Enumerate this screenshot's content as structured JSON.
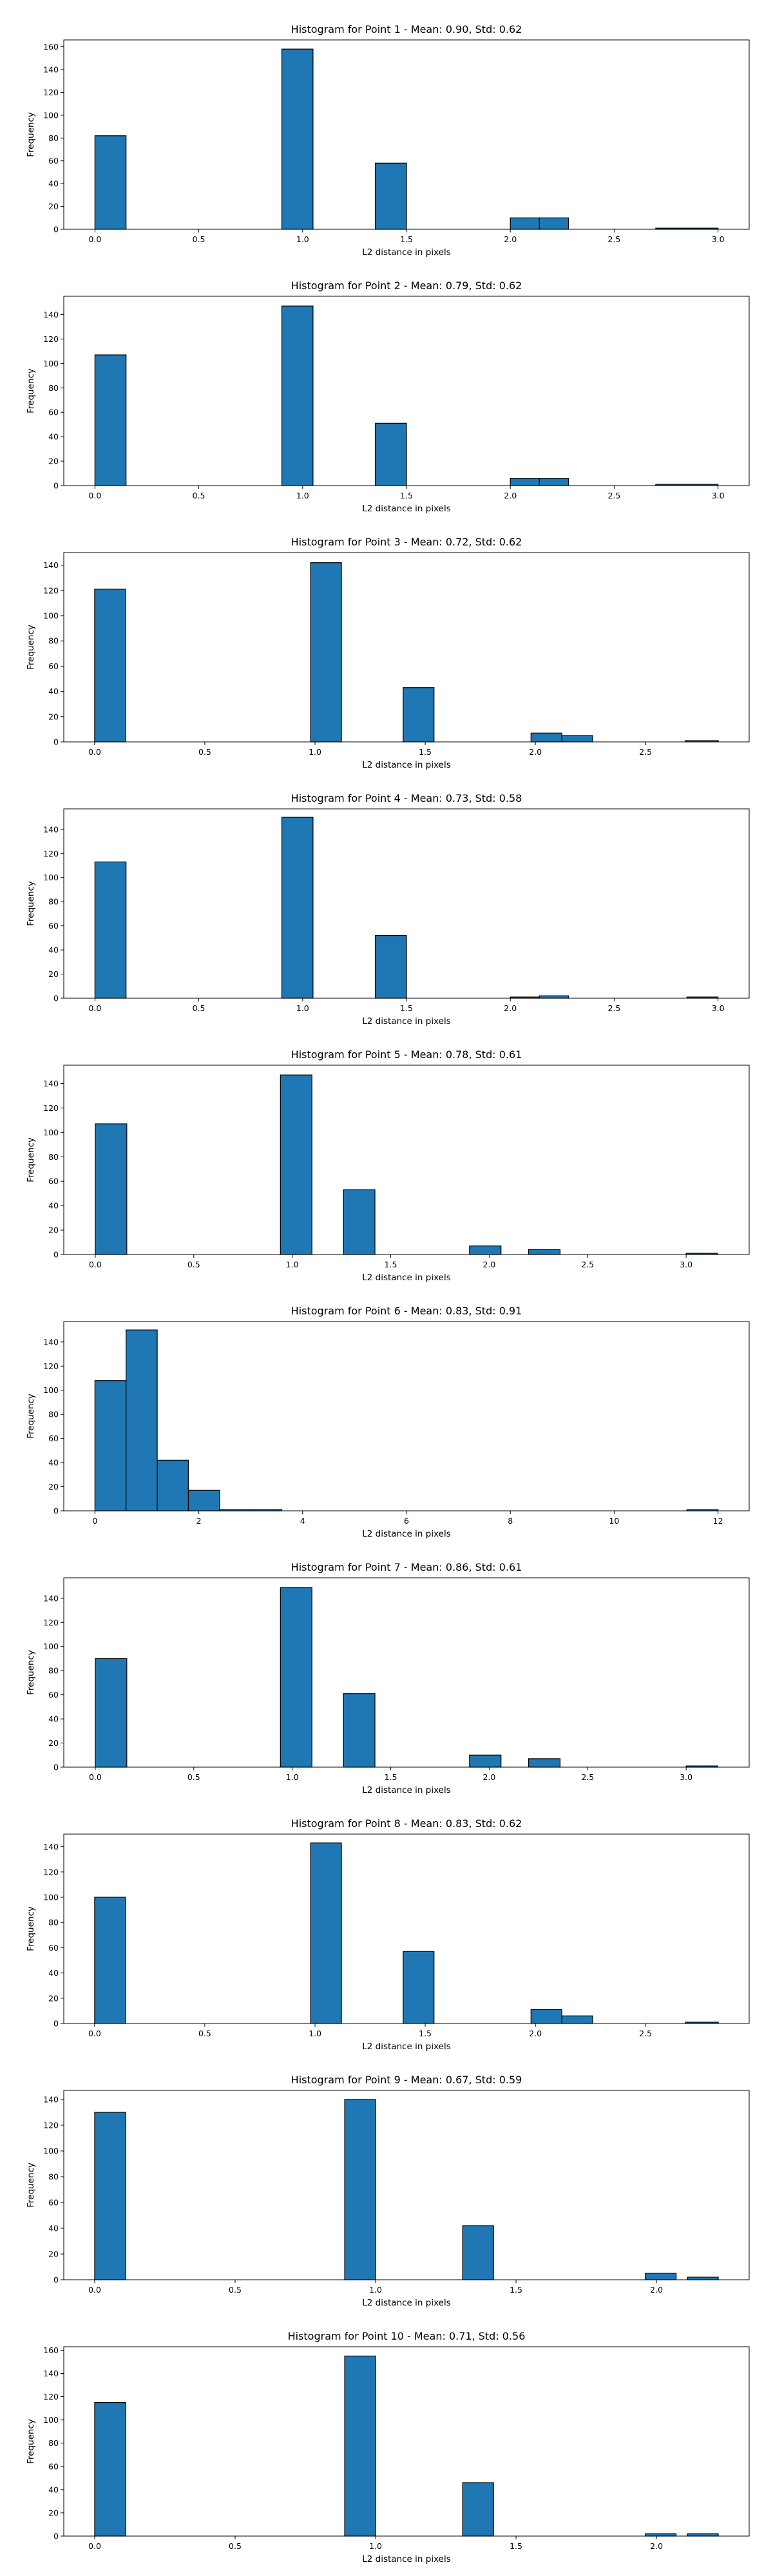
{
  "figure": {
    "background": "#ffffff"
  },
  "style": {
    "bar_color": "#1f77b4",
    "edge_color": "#000000"
  },
  "chart_data": [
    {
      "type": "bar",
      "title": "Histogram for Point 1 - Mean: 0.90, Std: 0.62",
      "xlabel": "L2 distance in pixels",
      "ylabel": "Frequency",
      "grid": false,
      "legend": "none",
      "xlim": [
        -0.15,
        3.15
      ],
      "ylim": [
        0,
        166
      ],
      "xticks": [
        "0.0",
        "0.5",
        "1.0",
        "1.5",
        "2.0",
        "2.5",
        "3.0"
      ],
      "yticks": [
        "0",
        "20",
        "40",
        "60",
        "80",
        "100",
        "120",
        "140",
        "160"
      ],
      "bins": [
        {
          "x0": 0.0,
          "x1": 0.15,
          "value": 82
        },
        {
          "x0": 0.9,
          "x1": 1.05,
          "value": 158
        },
        {
          "x0": 1.35,
          "x1": 1.5,
          "value": 58
        },
        {
          "x0": 2.0,
          "x1": 2.14,
          "value": 10
        },
        {
          "x0": 2.14,
          "x1": 2.28,
          "value": 10
        },
        {
          "x0": 2.7,
          "x1": 3.0,
          "value": 1
        }
      ]
    },
    {
      "type": "bar",
      "title": "Histogram for Point 2 - Mean: 0.79, Std: 0.62",
      "xlabel": "L2 distance in pixels",
      "ylabel": "Frequency",
      "grid": false,
      "legend": "none",
      "xlim": [
        -0.15,
        3.15
      ],
      "ylim": [
        0,
        155
      ],
      "xticks": [
        "0.0",
        "0.5",
        "1.0",
        "1.5",
        "2.0",
        "2.5",
        "3.0"
      ],
      "yticks": [
        "0",
        "20",
        "40",
        "60",
        "80",
        "100",
        "120",
        "140"
      ],
      "bins": [
        {
          "x0": 0.0,
          "x1": 0.15,
          "value": 107
        },
        {
          "x0": 0.9,
          "x1": 1.05,
          "value": 147
        },
        {
          "x0": 1.35,
          "x1": 1.5,
          "value": 51
        },
        {
          "x0": 2.0,
          "x1": 2.14,
          "value": 6
        },
        {
          "x0": 2.14,
          "x1": 2.28,
          "value": 6
        },
        {
          "x0": 2.7,
          "x1": 3.0,
          "value": 1
        }
      ]
    },
    {
      "type": "bar",
      "title": "Histogram for Point 3 - Mean: 0.72, Std: 0.62",
      "xlabel": "L2 distance in pixels",
      "ylabel": "Frequency",
      "grid": false,
      "legend": "none",
      "xlim": [
        -0.14,
        2.97
      ],
      "ylim": [
        0,
        150
      ],
      "xticks": [
        "0.0",
        "0.5",
        "1.0",
        "1.5",
        "2.0",
        "2.5"
      ],
      "yticks": [
        "0",
        "20",
        "40",
        "60",
        "80",
        "100",
        "120",
        "140"
      ],
      "bins": [
        {
          "x0": 0.0,
          "x1": 0.14,
          "value": 121
        },
        {
          "x0": 0.98,
          "x1": 1.12,
          "value": 142
        },
        {
          "x0": 1.4,
          "x1": 1.54,
          "value": 43
        },
        {
          "x0": 1.98,
          "x1": 2.12,
          "value": 7
        },
        {
          "x0": 2.12,
          "x1": 2.26,
          "value": 5
        },
        {
          "x0": 2.68,
          "x1": 2.83,
          "value": 1
        }
      ]
    },
    {
      "type": "bar",
      "title": "Histogram for Point 4 - Mean: 0.73, Std: 0.58",
      "xlabel": "L2 distance in pixels",
      "ylabel": "Frequency",
      "grid": false,
      "legend": "none",
      "xlim": [
        -0.15,
        3.15
      ],
      "ylim": [
        0,
        157
      ],
      "xticks": [
        "0.0",
        "0.5",
        "1.0",
        "1.5",
        "2.0",
        "2.5",
        "3.0"
      ],
      "yticks": [
        "0",
        "20",
        "40",
        "60",
        "80",
        "100",
        "120",
        "140"
      ],
      "bins": [
        {
          "x0": 0.0,
          "x1": 0.15,
          "value": 113
        },
        {
          "x0": 0.9,
          "x1": 1.05,
          "value": 150
        },
        {
          "x0": 1.35,
          "x1": 1.5,
          "value": 52
        },
        {
          "x0": 2.0,
          "x1": 2.14,
          "value": 1
        },
        {
          "x0": 2.14,
          "x1": 2.28,
          "value": 2
        },
        {
          "x0": 2.85,
          "x1": 3.0,
          "value": 1
        }
      ]
    },
    {
      "type": "bar",
      "title": "Histogram for Point 5 - Mean: 0.78, Std: 0.61",
      "xlabel": "L2 distance in pixels",
      "ylabel": "Frequency",
      "grid": false,
      "legend": "none",
      "xlim": [
        -0.16,
        3.32
      ],
      "ylim": [
        0,
        155
      ],
      "xticks": [
        "0.0",
        "0.5",
        "1.0",
        "1.5",
        "2.0",
        "2.5",
        "3.0"
      ],
      "yticks": [
        "0",
        "20",
        "40",
        "60",
        "80",
        "100",
        "120",
        "140"
      ],
      "bins": [
        {
          "x0": 0.0,
          "x1": 0.16,
          "value": 107
        },
        {
          "x0": 0.94,
          "x1": 1.1,
          "value": 147
        },
        {
          "x0": 1.26,
          "x1": 1.42,
          "value": 53
        },
        {
          "x0": 1.9,
          "x1": 2.06,
          "value": 7
        },
        {
          "x0": 2.2,
          "x1": 2.36,
          "value": 4
        },
        {
          "x0": 3.0,
          "x1": 3.16,
          "value": 1
        }
      ]
    },
    {
      "type": "bar",
      "title": "Histogram for Point 6 - Mean: 0.83, Std: 0.91",
      "xlabel": "L2 distance in pixels",
      "ylabel": "Frequency",
      "grid": false,
      "legend": "none",
      "xlim": [
        -0.6,
        12.6
      ],
      "ylim": [
        0,
        157
      ],
      "xticks": [
        "0",
        "2",
        "4",
        "6",
        "8",
        "10",
        "12"
      ],
      "yticks": [
        "0",
        "20",
        "40",
        "60",
        "80",
        "100",
        "120",
        "140"
      ],
      "bins": [
        {
          "x0": 0.0,
          "x1": 0.6,
          "value": 108
        },
        {
          "x0": 0.6,
          "x1": 1.2,
          "value": 150
        },
        {
          "x0": 1.2,
          "x1": 1.8,
          "value": 42
        },
        {
          "x0": 1.8,
          "x1": 2.4,
          "value": 17
        },
        {
          "x0": 2.4,
          "x1": 3.0,
          "value": 1
        },
        {
          "x0": 3.0,
          "x1": 3.6,
          "value": 1
        },
        {
          "x0": 11.4,
          "x1": 12.0,
          "value": 1
        }
      ]
    },
    {
      "type": "bar",
      "title": "Histogram for Point 7 - Mean: 0.86, Std: 0.61",
      "xlabel": "L2 distance in pixels",
      "ylabel": "Frequency",
      "grid": false,
      "legend": "none",
      "xlim": [
        -0.16,
        3.32
      ],
      "ylim": [
        0,
        157
      ],
      "xticks": [
        "0.0",
        "0.5",
        "1.0",
        "1.5",
        "2.0",
        "2.5",
        "3.0"
      ],
      "yticks": [
        "0",
        "20",
        "40",
        "60",
        "80",
        "100",
        "120",
        "140"
      ],
      "bins": [
        {
          "x0": 0.0,
          "x1": 0.16,
          "value": 90
        },
        {
          "x0": 0.94,
          "x1": 1.1,
          "value": 149
        },
        {
          "x0": 1.26,
          "x1": 1.42,
          "value": 61
        },
        {
          "x0": 1.9,
          "x1": 2.06,
          "value": 10
        },
        {
          "x0": 2.2,
          "x1": 2.36,
          "value": 7
        },
        {
          "x0": 3.0,
          "x1": 3.16,
          "value": 1
        }
      ]
    },
    {
      "type": "bar",
      "title": "Histogram for Point 8 - Mean: 0.83, Std: 0.62",
      "xlabel": "L2 distance in pixels",
      "ylabel": "Frequency",
      "grid": false,
      "legend": "none",
      "xlim": [
        -0.14,
        2.97
      ],
      "ylim": [
        0,
        150
      ],
      "xticks": [
        "0.0",
        "0.5",
        "1.0",
        "1.5",
        "2.0",
        "2.5"
      ],
      "yticks": [
        "0",
        "20",
        "40",
        "60",
        "80",
        "100",
        "120",
        "140"
      ],
      "bins": [
        {
          "x0": 0.0,
          "x1": 0.14,
          "value": 100
        },
        {
          "x0": 0.98,
          "x1": 1.12,
          "value": 143
        },
        {
          "x0": 1.4,
          "x1": 1.54,
          "value": 57
        },
        {
          "x0": 1.98,
          "x1": 2.12,
          "value": 11
        },
        {
          "x0": 2.12,
          "x1": 2.26,
          "value": 6
        },
        {
          "x0": 2.68,
          "x1": 2.83,
          "value": 1
        }
      ]
    },
    {
      "type": "bar",
      "title": "Histogram for Point 9 - Mean: 0.67, Std: 0.59",
      "xlabel": "L2 distance in pixels",
      "ylabel": "Frequency",
      "grid": false,
      "legend": "none",
      "xlim": [
        -0.11,
        2.33
      ],
      "ylim": [
        0,
        147
      ],
      "xticks": [
        "0.0",
        "0.5",
        "1.0",
        "1.5",
        "2.0"
      ],
      "yticks": [
        "0",
        "20",
        "40",
        "60",
        "80",
        "100",
        "120",
        "140"
      ],
      "bins": [
        {
          "x0": 0.0,
          "x1": 0.11,
          "value": 130
        },
        {
          "x0": 0.89,
          "x1": 1.0,
          "value": 140
        },
        {
          "x0": 1.31,
          "x1": 1.42,
          "value": 42
        },
        {
          "x0": 1.96,
          "x1": 2.07,
          "value": 5
        },
        {
          "x0": 2.11,
          "x1": 2.22,
          "value": 2
        }
      ]
    },
    {
      "type": "bar",
      "title": "Histogram for Point 10 - Mean: 0.71, Std: 0.56",
      "xlabel": "L2 distance in pixels",
      "ylabel": "Frequency",
      "grid": false,
      "legend": "none",
      "xlim": [
        -0.11,
        2.33
      ],
      "ylim": [
        0,
        163
      ],
      "xticks": [
        "0.0",
        "0.5",
        "1.0",
        "1.5",
        "2.0"
      ],
      "yticks": [
        "0",
        "20",
        "40",
        "60",
        "80",
        "100",
        "120",
        "140",
        "160"
      ],
      "bins": [
        {
          "x0": 0.0,
          "x1": 0.11,
          "value": 115
        },
        {
          "x0": 0.89,
          "x1": 1.0,
          "value": 155
        },
        {
          "x0": 1.31,
          "x1": 1.42,
          "value": 46
        },
        {
          "x0": 1.96,
          "x1": 2.07,
          "value": 2
        },
        {
          "x0": 2.11,
          "x1": 2.22,
          "value": 2
        }
      ]
    }
  ]
}
